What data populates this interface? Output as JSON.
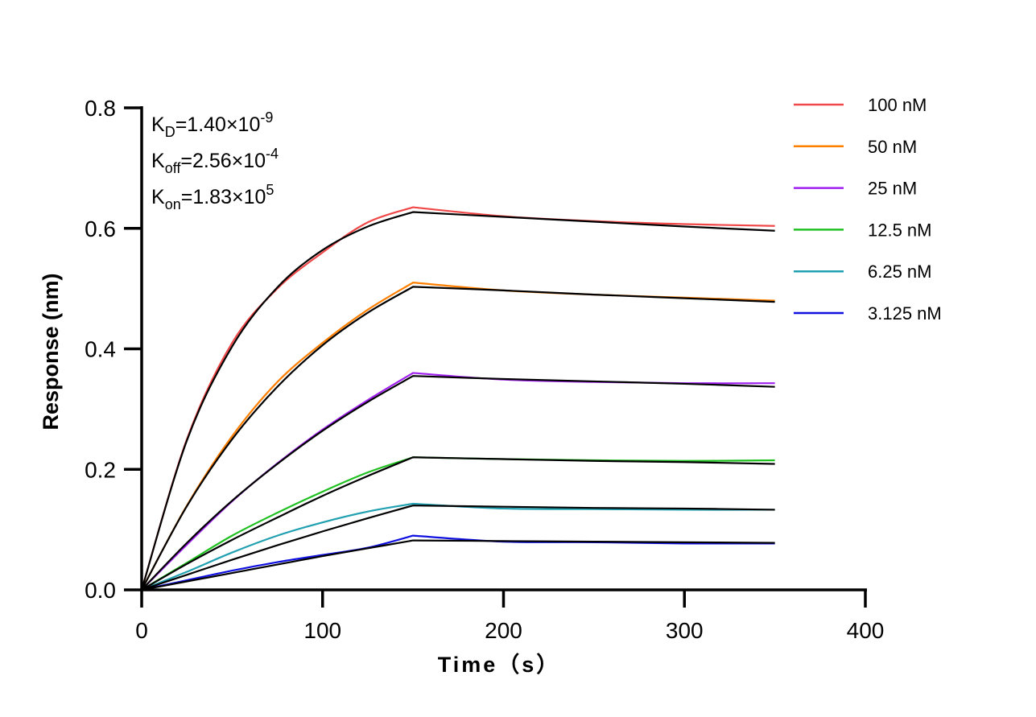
{
  "chart_data": {
    "type": "line",
    "title": "",
    "xlabel": "Time（s）",
    "ylabel": "Response (nm)",
    "xlim": [
      0,
      400
    ],
    "ylim": [
      0,
      0.8
    ],
    "xticks": [
      "0",
      "100",
      "200",
      "300",
      "400"
    ],
    "yticks": [
      "0.0",
      "0.2",
      "0.4",
      "0.6",
      "0.8"
    ],
    "grid": false,
    "legend_position": "top-right",
    "annotations": [
      {
        "main": "K",
        "sub": "D",
        "rest": "=1.40×10",
        "sup": "-9"
      },
      {
        "main": "K",
        "sub": "off",
        "rest": "=2.56×10",
        "sup": "-4"
      },
      {
        "main": "K",
        "sub": "on",
        "rest": "=1.83×10",
        "sup": "5"
      }
    ],
    "x": [
      0,
      25,
      50,
      75,
      100,
      125,
      150,
      200,
      250,
      300,
      350
    ],
    "fit_color": "#000000",
    "series": [
      {
        "name": "100 nM",
        "color": "#f04848",
        "values": [
          0,
          0.25,
          0.41,
          0.5,
          0.56,
          0.61,
          0.635,
          0.62,
          0.612,
          0.607,
          0.604
        ],
        "fit": [
          0,
          0.248,
          0.404,
          0.502,
          0.564,
          0.603,
          0.627,
          0.619,
          0.611,
          0.603,
          0.596
        ]
      },
      {
        "name": "50 nM",
        "color": "#ff8000",
        "values": [
          0,
          0.14,
          0.255,
          0.345,
          0.41,
          0.465,
          0.51,
          0.497,
          0.49,
          0.485,
          0.48
        ],
        "fit": [
          0,
          0.139,
          0.25,
          0.337,
          0.406,
          0.46,
          0.503,
          0.497,
          0.49,
          0.484,
          0.478
        ]
      },
      {
        "name": "25 nM",
        "color": "#a020f0",
        "values": [
          0,
          0.075,
          0.147,
          0.21,
          0.266,
          0.315,
          0.36,
          0.349,
          0.345,
          0.343,
          0.343
        ],
        "fit": [
          0,
          0.078,
          0.148,
          0.209,
          0.264,
          0.312,
          0.355,
          0.35,
          0.346,
          0.342,
          0.337
        ]
      },
      {
        "name": "12.5 nM",
        "color": "#20c020",
        "values": [
          0,
          0.045,
          0.09,
          0.128,
          0.163,
          0.195,
          0.22,
          0.217,
          0.215,
          0.214,
          0.215
        ],
        "fit": [
          0,
          0.043,
          0.083,
          0.12,
          0.156,
          0.189,
          0.22,
          0.217,
          0.214,
          0.212,
          0.209
        ]
      },
      {
        "name": "6.25 nM",
        "color": "#20a0b0",
        "values": [
          0,
          0.03,
          0.062,
          0.09,
          0.112,
          0.13,
          0.143,
          0.135,
          0.134,
          0.133,
          0.133
        ],
        "fit": [
          0,
          0.025,
          0.05,
          0.074,
          0.097,
          0.119,
          0.14,
          0.138,
          0.136,
          0.135,
          0.133
        ]
      },
      {
        "name": "3.125 nM",
        "color": "#1010e0",
        "values": [
          0,
          0.016,
          0.032,
          0.046,
          0.058,
          0.07,
          0.09,
          0.08,
          0.079,
          0.077,
          0.077
        ],
        "fit": [
          0,
          0.014,
          0.028,
          0.042,
          0.056,
          0.069,
          0.082,
          0.081,
          0.08,
          0.079,
          0.078
        ]
      }
    ]
  }
}
